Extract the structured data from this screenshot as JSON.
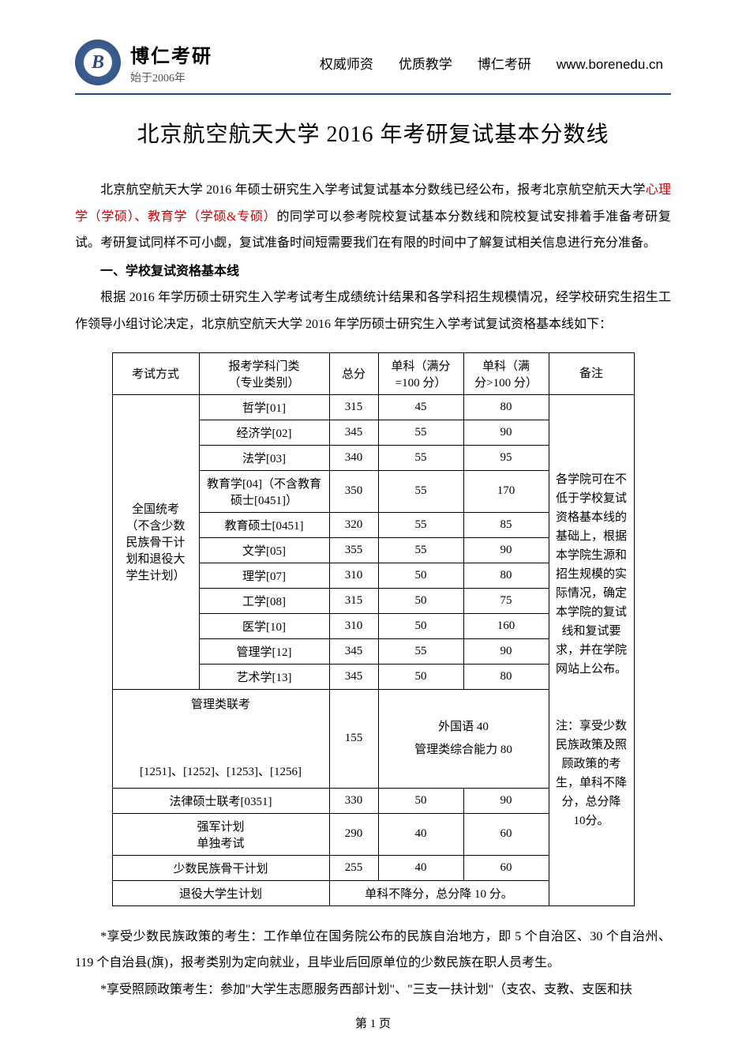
{
  "header": {
    "logo_letter": "B",
    "brand": "博仁考研",
    "since": "始于2006年",
    "nav": [
      "权威师资",
      "优质教学",
      "博仁考研"
    ],
    "url": "www.borenedu.cn"
  },
  "title": "北京航空航天大学 2016 年考研复试基本分数线",
  "intro": {
    "p1a": "北京航空航天大学 2016 年硕士研究生入学考试复试基本分数线已经公布，报考北京航空航天大学",
    "p1_red": "心理学（学硕）、教育学（学硕&专硕）",
    "p1b": "的同学可以参考院校复试基本分数线和院校复试安排着手准备考研复试。考研复试同样不可小觑，复试准备时间短需要我们在有限的时间中了解复试相关信息进行充分准备。"
  },
  "section1_heading": "一、学校复试资格基本线",
  "section1_para": "根据 2016 年学历硕士研究生入学考试考生成绩统计结果和各学科招生规模情况，经学校研究生招生工作领导小组讨论决定，北京航空航天大学 2016 年学历硕士研究生入学考试复试资格基本线如下：",
  "table": {
    "headers": {
      "method": "考试方式",
      "category": "报考学科门类\n（专业类别）",
      "total": "总分",
      "s100": "单科（满分\n=100 分）",
      "s100p": "单科（满\n分>100 分）",
      "note": "备注"
    },
    "method_label": "全国统考\n（不含少数\n民族骨干计\n划和退役大\n学生计划）",
    "categories": [
      {
        "name": "哲学[01]",
        "total": "315",
        "s100": "45",
        "s100p": "80"
      },
      {
        "name": "经济学[02]",
        "total": "345",
        "s100": "55",
        "s100p": "90"
      },
      {
        "name": "法学[03]",
        "total": "340",
        "s100": "55",
        "s100p": "95"
      },
      {
        "name": "教育学[04]（不含教育\n硕士[0451]）",
        "total": "350",
        "s100": "55",
        "s100p": "170"
      },
      {
        "name": "教育硕士[0451]",
        "total": "320",
        "s100": "55",
        "s100p": "85"
      },
      {
        "name": "文学[05]",
        "total": "355",
        "s100": "55",
        "s100p": "90"
      },
      {
        "name": "理学[07]",
        "total": "310",
        "s100": "50",
        "s100p": "80"
      },
      {
        "name": "工学[08]",
        "total": "315",
        "s100": "50",
        "s100p": "75"
      },
      {
        "name": "医学[10]",
        "total": "310",
        "s100": "50",
        "s100p": "160"
      },
      {
        "name": "管理学[12]",
        "total": "345",
        "s100": "55",
        "s100p": "90"
      },
      {
        "name": "艺术学[13]",
        "total": "345",
        "s100": "50",
        "s100p": "80"
      }
    ],
    "mgmt_row": {
      "label": "管理类联考\n\n[1251]、[1252]、[1253]、[1256]",
      "total": "155",
      "merged": "外国语 40\n管理类综合能力 80"
    },
    "law_row": {
      "label": "法律硕士联考[0351]",
      "total": "330",
      "s100": "50",
      "s100p": "90"
    },
    "army_row": {
      "label": "强军计划\n单独考试",
      "total": "290",
      "s100": "40",
      "s100p": "60"
    },
    "minority_row": {
      "label": "少数民族骨干计划",
      "total": "255",
      "s100": "40",
      "s100p": "60"
    },
    "retired_row": {
      "label": "退役大学生计划",
      "merged": "单科不降分，总分降 10 分。"
    },
    "note_text": "各学院可在不低于学校复试资格基本线的基础上，根据本学院生源和招生规模的实际情况，确定本学院的复试线和复试要求，并在学院网站上公布。\n\n注：享受少数民族政策及照顾政策的考生，单科不降分，总分降 10分。"
  },
  "footnotes": {
    "n1": "*享受少数民族政策的考生：工作单位在国务院公布的民族自治地方，即 5 个自治区、30 个自治州、119 个自治县(旗)，报考类别为定向就业，且毕业后回原单位的少数民族在职人员考生。",
    "n2": "*享受照顾政策考生：参加\"大学生志愿服务西部计划\"、\"三支一扶计划\"（支农、支教、支医和扶"
  },
  "page_number": "第 1 页"
}
